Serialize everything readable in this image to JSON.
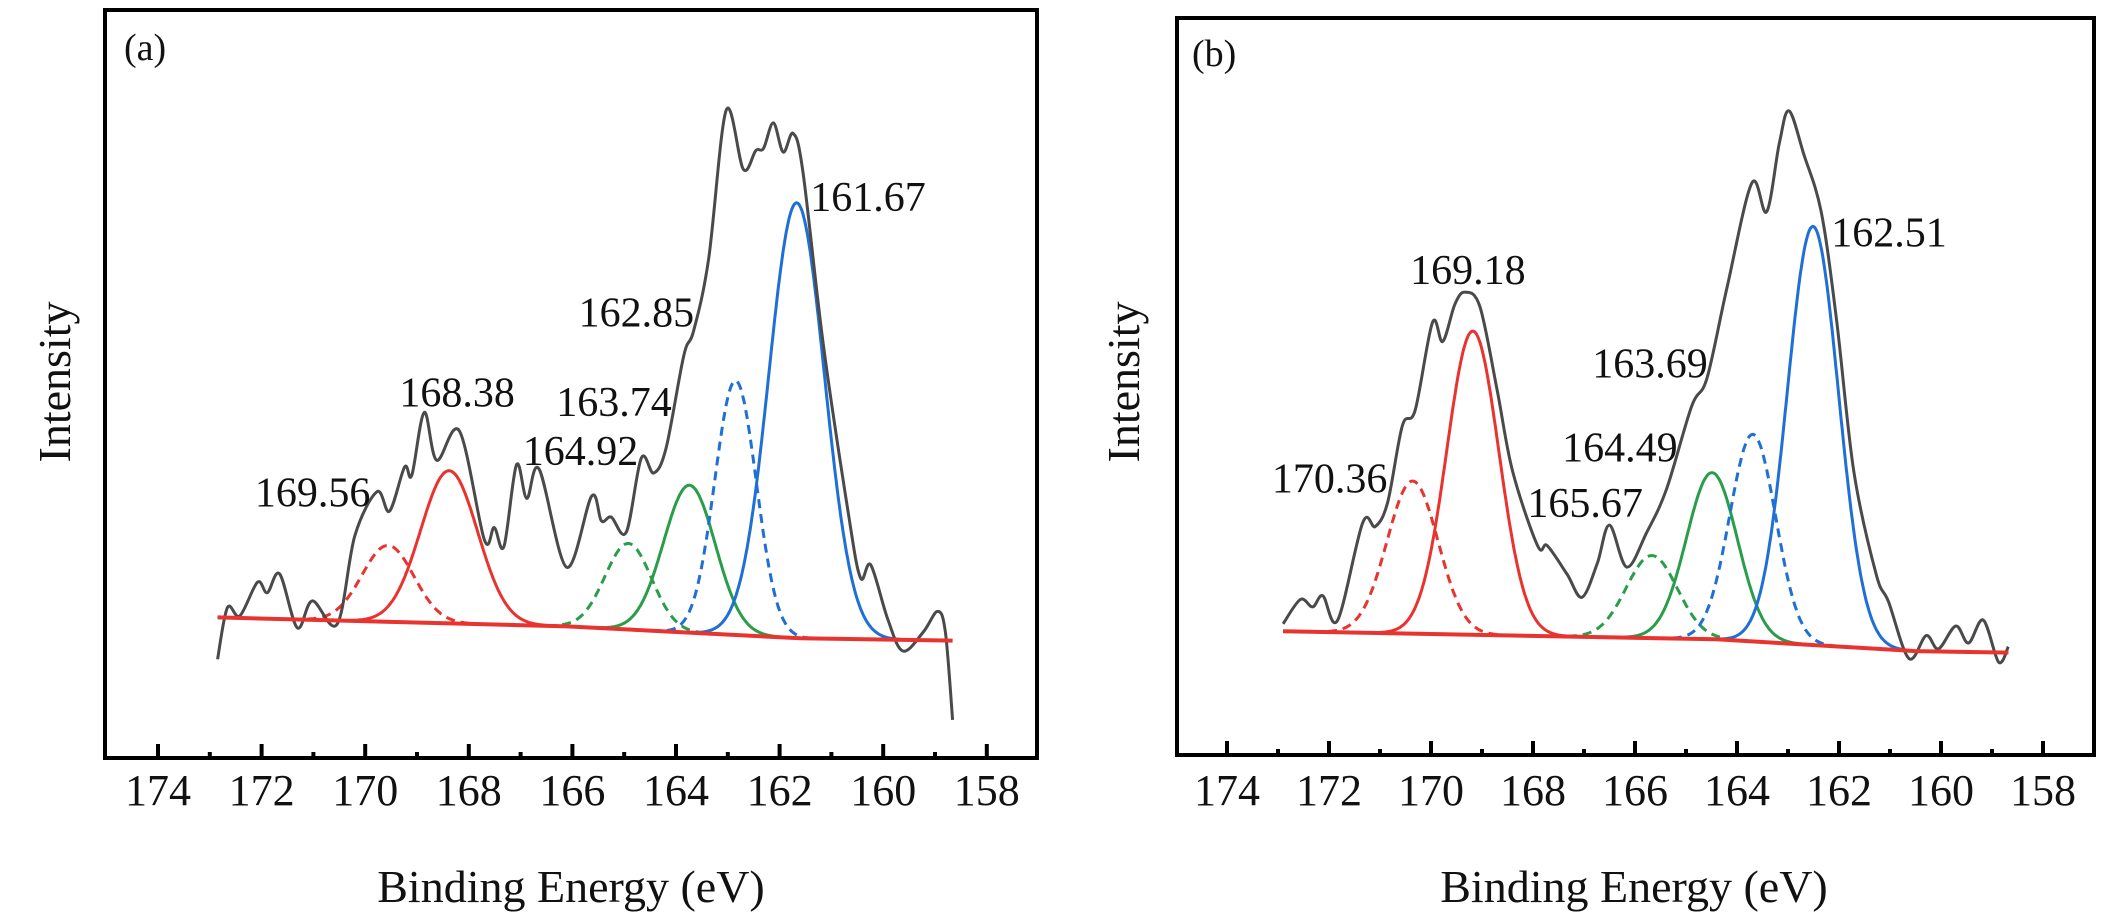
{
  "chart_data": [
    {
      "type": "line",
      "panel_label": "(a)",
      "xlabel": "Binding Energy (eV)",
      "ylabel": "Intensity",
      "xlim": [
        174,
        158
      ],
      "x_reversed": true,
      "ylim": [
        0,
        100
      ],
      "y_ticks_shown": false,
      "xticks": [
        174,
        172,
        170,
        168,
        166,
        164,
        162,
        160,
        158
      ],
      "grid": false,
      "colors": {
        "raw": "#4a4a4a",
        "background": "#e8332f",
        "S_red": "#e8332f",
        "S_green": "#2a9d4a",
        "S_blue": "#1f6fd6"
      },
      "raw_spectrum": [
        [
          172.85,
          13.2
        ],
        [
          172.66,
          20.1
        ],
        [
          172.42,
          19.0
        ],
        [
          172.08,
          23.5
        ],
        [
          171.89,
          22.1
        ],
        [
          171.65,
          24.6
        ],
        [
          171.31,
          17.4
        ],
        [
          171.02,
          21.0
        ],
        [
          170.54,
          17.9
        ],
        [
          170.2,
          29.7
        ],
        [
          169.77,
          35.6
        ],
        [
          169.53,
          33.0
        ],
        [
          169.24,
          38.9
        ],
        [
          169.1,
          37.8
        ],
        [
          168.86,
          46.2
        ],
        [
          168.62,
          39.8
        ],
        [
          168.18,
          43.7
        ],
        [
          167.7,
          29.2
        ],
        [
          167.51,
          30.8
        ],
        [
          167.32,
          28.3
        ],
        [
          167.08,
          39.2
        ],
        [
          166.88,
          34.7
        ],
        [
          166.64,
          38.6
        ],
        [
          166.11,
          25.5
        ],
        [
          165.63,
          35.0
        ],
        [
          165.44,
          31.7
        ],
        [
          165.25,
          32.2
        ],
        [
          164.96,
          30.2
        ],
        [
          164.67,
          40.1
        ],
        [
          164.43,
          38.1
        ],
        [
          164.19,
          41.5
        ],
        [
          163.85,
          53.8
        ],
        [
          163.66,
          57.1
        ],
        [
          163.37,
          66.7
        ],
        [
          163.03,
          86.6
        ],
        [
          162.7,
          78.7
        ],
        [
          162.46,
          81.2
        ],
        [
          162.31,
          81.5
        ],
        [
          162.12,
          84.9
        ],
        [
          161.93,
          81.0
        ],
        [
          161.74,
          83.5
        ],
        [
          161.55,
          78.4
        ],
        [
          161.16,
          55.5
        ],
        [
          160.68,
          33.0
        ],
        [
          160.44,
          24.1
        ],
        [
          160.24,
          25.8
        ],
        [
          159.91,
          18.5
        ],
        [
          159.62,
          14.3
        ],
        [
          159.23,
          16.8
        ],
        [
          158.95,
          19.6
        ],
        [
          158.8,
          16.8
        ],
        [
          158.66,
          5.1
        ]
      ],
      "background": [
        [
          172.85,
          18.8
        ],
        [
          166.1,
          17.6
        ],
        [
          161.6,
          16.0
        ],
        [
          158.66,
          15.7
        ]
      ],
      "components": [
        {
          "center": 169.56,
          "amplitude": 10.2,
          "sigma": 0.5,
          "color": "#e8332f",
          "dashed": true
        },
        {
          "center": 168.38,
          "amplitude": 20.4,
          "sigma": 0.55,
          "color": "#e8332f",
          "dashed": false
        },
        {
          "center": 164.92,
          "amplitude": 11.5,
          "sigma": 0.45,
          "color": "#2a9d4a",
          "dashed": true
        },
        {
          "center": 163.74,
          "amplitude": 19.7,
          "sigma": 0.5,
          "color": "#2a9d4a",
          "dashed": false
        },
        {
          "center": 162.85,
          "amplitude": 34.0,
          "sigma": 0.4,
          "color": "#1f6fd6",
          "dashed": true
        },
        {
          "center": 161.67,
          "amplitude": 58.2,
          "sigma": 0.535,
          "color": "#1f6fd6",
          "dashed": false
        }
      ],
      "annotations": [
        {
          "text": "161.67",
          "x": 161.41,
          "y": 73.1
        },
        {
          "text": "162.85",
          "x": 165.88,
          "y": 57.7
        },
        {
          "text": "163.74",
          "x": 166.31,
          "y": 45.7
        },
        {
          "text": "164.92",
          "x": 166.96,
          "y": 39.2
        },
        {
          "text": "168.38",
          "x": 169.34,
          "y": 47.0
        },
        {
          "text": "169.56",
          "x": 172.13,
          "y": 33.6
        }
      ]
    },
    {
      "type": "line",
      "panel_label": "(b)",
      "xlabel": "Binding Energy (eV)",
      "ylabel": "Intensity",
      "xlim": [
        174,
        158
      ],
      "x_reversed": true,
      "ylim": [
        0,
        100
      ],
      "y_ticks_shown": false,
      "xticks": [
        174,
        172,
        170,
        168,
        166,
        164,
        162,
        160,
        158
      ],
      "grid": false,
      "colors": {
        "raw": "#4a4a4a",
        "background": "#e8332f",
        "S_red": "#e8332f",
        "S_green": "#2a9d4a",
        "S_blue": "#1f6fd6"
      },
      "raw_spectrum": [
        [
          172.9,
          17.8
        ],
        [
          172.56,
          21.1
        ],
        [
          172.32,
          20.1
        ],
        [
          172.12,
          21.6
        ],
        [
          171.83,
          18.3
        ],
        [
          171.34,
          31.5
        ],
        [
          171.09,
          31.0
        ],
        [
          170.85,
          34.3
        ],
        [
          170.56,
          44.7
        ],
        [
          170.31,
          46.8
        ],
        [
          169.97,
          58.7
        ],
        [
          169.77,
          56.1
        ],
        [
          169.53,
          61.2
        ],
        [
          169.33,
          62.8
        ],
        [
          169.04,
          60.8
        ],
        [
          168.7,
          49.4
        ],
        [
          168.4,
          38.5
        ],
        [
          167.91,
          28.4
        ],
        [
          167.72,
          28.4
        ],
        [
          167.33,
          24.5
        ],
        [
          167.04,
          21.4
        ],
        [
          166.74,
          26.0
        ],
        [
          166.5,
          31.2
        ],
        [
          166.16,
          25.5
        ],
        [
          165.77,
          30.2
        ],
        [
          165.38,
          36.1
        ],
        [
          164.89,
          47.3
        ],
        [
          164.59,
          51.1
        ],
        [
          164.2,
          63.3
        ],
        [
          163.71,
          77.6
        ],
        [
          163.42,
          73.7
        ],
        [
          163.17,
          83.0
        ],
        [
          162.98,
          87.4
        ],
        [
          162.69,
          81.5
        ],
        [
          162.35,
          73.7
        ],
        [
          162.05,
          59.2
        ],
        [
          161.71,
          38.5
        ],
        [
          161.27,
          24.5
        ],
        [
          161.03,
          20.8
        ],
        [
          160.63,
          13.1
        ],
        [
          160.29,
          16.2
        ],
        [
          160.05,
          14.4
        ],
        [
          159.71,
          17.5
        ],
        [
          159.46,
          15.2
        ],
        [
          159.17,
          18.3
        ],
        [
          158.87,
          12.6
        ],
        [
          158.68,
          14.7
        ]
      ],
      "background": [
        [
          172.9,
          16.8
        ],
        [
          164.4,
          15.7
        ],
        [
          160.5,
          14.1
        ],
        [
          158.68,
          13.9
        ]
      ],
      "components": [
        {
          "center": 170.36,
          "amplitude": 20.7,
          "sigma": 0.5,
          "color": "#e8332f",
          "dashed": true
        },
        {
          "center": 169.18,
          "amplitude": 41.2,
          "sigma": 0.51,
          "color": "#e8332f",
          "dashed": false
        },
        {
          "center": 165.67,
          "amplitude": 11.2,
          "sigma": 0.5,
          "color": "#2a9d4a",
          "dashed": true
        },
        {
          "center": 164.49,
          "amplitude": 22.6,
          "sigma": 0.5,
          "color": "#2a9d4a",
          "dashed": false
        },
        {
          "center": 163.69,
          "amplitude": 28.1,
          "sigma": 0.45,
          "color": "#1f6fd6",
          "dashed": true
        },
        {
          "center": 162.51,
          "amplitude": 56.8,
          "sigma": 0.5,
          "color": "#1f6fd6",
          "dashed": false
        }
      ],
      "annotations": [
        {
          "text": "162.51",
          "x": 162.15,
          "y": 69.0
        },
        {
          "text": "169.18",
          "x": 170.41,
          "y": 63.9
        },
        {
          "text": "163.69",
          "x": 166.84,
          "y": 51.2
        },
        {
          "text": "164.49",
          "x": 167.43,
          "y": 39.8
        },
        {
          "text": "170.36",
          "x": 173.12,
          "y": 35.6
        },
        {
          "text": "165.67",
          "x": 168.11,
          "y": 32.3
        }
      ]
    }
  ]
}
